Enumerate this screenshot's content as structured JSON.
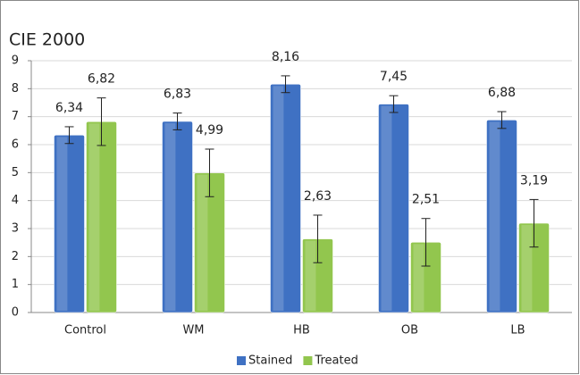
{
  "chart_data": {
    "type": "bar",
    "title": "CIE 2000",
    "categories": [
      "Control",
      "WM",
      "HB",
      "OB",
      "LB"
    ],
    "series": [
      {
        "name": "Stained",
        "color": "#3f71c3",
        "values": [
          6.34,
          6.83,
          8.16,
          7.45,
          6.88
        ],
        "value_labels": [
          "6,34",
          "6,83",
          "8,16",
          "7,45",
          "6,88"
        ],
        "errors": [
          0.3,
          0.3,
          0.3,
          0.3,
          0.3
        ]
      },
      {
        "name": "Treated",
        "color": "#92c64e",
        "values": [
          6.82,
          4.99,
          2.63,
          2.51,
          3.19
        ],
        "value_labels": [
          "6,82",
          "4,99",
          "2,63",
          "2,51",
          "3,19"
        ],
        "errors": [
          0.85,
          0.85,
          0.85,
          0.85,
          0.85
        ]
      }
    ],
    "ylim": [
      0,
      9
    ],
    "yticks": [
      0,
      1,
      2,
      3,
      4,
      5,
      6,
      7,
      8,
      9
    ],
    "grid": true,
    "legend": "bottom"
  }
}
